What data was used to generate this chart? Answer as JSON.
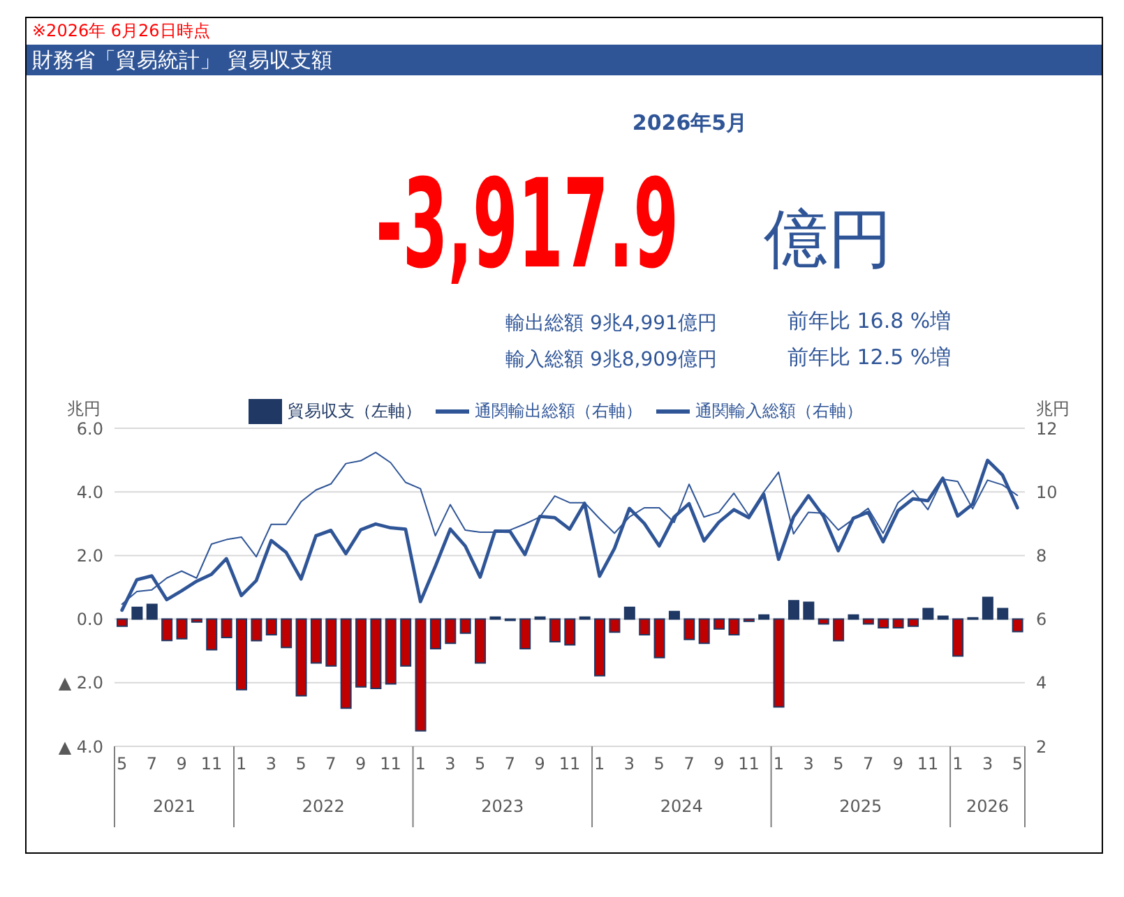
{
  "chart_data": {
    "type": "bar",
    "title": "財務省「貿易統計」 貿易収支額",
    "subtitle": "2026年5月",
    "ylabel": "兆円",
    "y2label": "兆円",
    "annotations": [
      "※2026年 6月26日時点",
      "-3,917.9",
      "億円",
      "輸出総額 9兆4,991億円",
      "前年比 16.8 %増",
      "輸入総額 9兆8,909億円",
      "前年比 12.5 %増",
      "2021",
      "2022",
      "2023",
      "2024",
      "2025",
      "2026"
    ],
    "categories": [
      "5",
      null,
      "7",
      null,
      "9",
      null,
      "11",
      null,
      "1",
      null,
      "3",
      null,
      "5",
      null,
      "7",
      null,
      "9",
      null,
      "11",
      null,
      "1",
      null,
      "3",
      null,
      "5",
      null,
      "7",
      null,
      "9",
      null,
      "11",
      null,
      "1",
      null,
      "3",
      null,
      "5",
      null,
      "7",
      null,
      "9",
      null,
      "11",
      null,
      "1",
      null,
      "3",
      null,
      "5",
      null,
      "7",
      null,
      "9",
      null,
      "11",
      null,
      "1",
      null,
      "3",
      null,
      "5"
    ],
    "series": [
      {
        "name": "貿易収支（左軸）",
        "color": "#1f3864",
        "colors": [
          "#c00000",
          "#1f3864",
          "#1f3864",
          "#c00000",
          "#c00000",
          "#c00000",
          "#c00000",
          "#c00000",
          "#c00000",
          "#c00000",
          "#c00000",
          "#c00000",
          "#c00000",
          "#c00000",
          "#c00000",
          "#c00000",
          "#c00000",
          "#c00000",
          "#c00000",
          "#c00000",
          "#c00000",
          "#c00000",
          "#c00000",
          "#c00000",
          "#c00000",
          "#1f3864",
          "#c00000",
          "#c00000",
          "#1f3864",
          "#c00000",
          "#c00000",
          "#1f3864",
          "#c00000",
          "#c00000",
          "#1f3864",
          "#c00000",
          "#c00000",
          "#1f3864",
          "#c00000",
          "#c00000",
          "#c00000",
          "#c00000",
          "#c00000",
          "#1f3864",
          "#c00000",
          "#1f3864",
          "#1f3864",
          "#c00000",
          "#c00000",
          "#1f3864",
          "#c00000",
          "#c00000",
          "#c00000",
          "#c00000",
          "#1f3864",
          "#1f3864",
          "#c00000",
          "#1f3864",
          "#1f3864",
          "#1f3864",
          "#c00000"
        ],
        "values": [
          -0.22,
          0.37,
          0.46,
          -0.67,
          -0.62,
          -0.09,
          -0.96,
          -0.58,
          -2.22,
          -0.68,
          -0.49,
          -0.89,
          -2.41,
          -1.38,
          -1.47,
          -2.8,
          -2.13,
          -2.18,
          -2.04,
          -1.47,
          -3.51,
          -0.93,
          -0.76,
          -0.44,
          -1.38,
          0.06,
          -0.04,
          -0.93,
          0.06,
          -0.71,
          -0.81,
          0.06,
          -1.78,
          -0.41,
          0.37,
          -0.49,
          -1.21,
          0.24,
          -0.64,
          -0.76,
          -0.31,
          -0.49,
          -0.07,
          0.13,
          -2.76,
          0.58,
          0.53,
          -0.15,
          -0.68,
          0.13,
          -0.15,
          -0.27,
          -0.27,
          -0.22,
          0.33,
          0.09,
          -1.16,
          0.04,
          0.68,
          0.33,
          -0.39
        ]
      },
      {
        "name": "通関輸出総額（右軸）",
        "type": "line",
        "axis": "y2",
        "color": "#2f5597",
        "values": [
          6.28,
          7.24,
          7.36,
          6.61,
          6.89,
          7.19,
          7.41,
          7.9,
          6.74,
          7.21,
          8.47,
          8.1,
          7.26,
          8.62,
          8.79,
          8.06,
          8.81,
          8.99,
          8.87,
          8.83,
          6.55,
          7.66,
          8.83,
          8.3,
          7.32,
          8.77,
          8.76,
          8.03,
          9.23,
          9.19,
          8.83,
          9.64,
          7.35,
          8.22,
          9.48,
          9.01,
          8.3,
          9.21,
          9.63,
          8.46,
          9.05,
          9.44,
          9.19,
          9.93,
          7.88,
          9.21,
          9.88,
          9.24,
          8.15,
          9.17,
          9.36,
          8.43,
          9.41,
          9.78,
          9.72,
          10.43,
          9.24,
          9.61,
          10.99,
          10.53,
          9.5
        ]
      },
      {
        "name": "通関輸入総額（右軸）",
        "type": "line",
        "axis": "y2",
        "color": "#2f5597",
        "values": [
          6.47,
          6.87,
          6.92,
          7.29,
          7.51,
          7.29,
          8.36,
          8.5,
          8.58,
          7.96,
          8.98,
          8.98,
          9.69,
          10.06,
          10.25,
          10.89,
          10.98,
          11.24,
          10.92,
          10.3,
          10.1,
          8.62,
          9.6,
          8.8,
          8.73,
          8.73,
          8.8,
          8.99,
          9.21,
          9.87,
          9.66,
          9.66,
          9.16,
          8.7,
          9.21,
          9.5,
          9.5,
          9.04,
          10.24,
          9.21,
          9.36,
          9.96,
          9.26,
          9.99,
          10.62,
          8.68,
          9.36,
          9.33,
          8.8,
          9.14,
          9.48,
          8.7,
          9.66,
          10.04,
          9.44,
          10.4,
          10.33,
          9.47,
          10.37,
          10.22,
          9.89
        ]
      }
    ],
    "ylim": [
      -4,
      6
    ],
    "yticks": [
      {
        "value": -4,
        "label": "▲ 4.0"
      },
      {
        "value": -2,
        "label": "▲ 2.0"
      },
      {
        "value": 0,
        "label": "0.0"
      },
      {
        "value": 2,
        "label": "2.0"
      },
      {
        "value": 4,
        "label": "4.0"
      },
      {
        "value": 6,
        "label": "6.0"
      }
    ],
    "y2lim": [
      2,
      12
    ],
    "y2ticks": [
      2,
      4,
      6,
      8,
      10,
      12
    ],
    "grid": "y",
    "legend": "top",
    "marker": "none",
    "line_style": "solid"
  }
}
